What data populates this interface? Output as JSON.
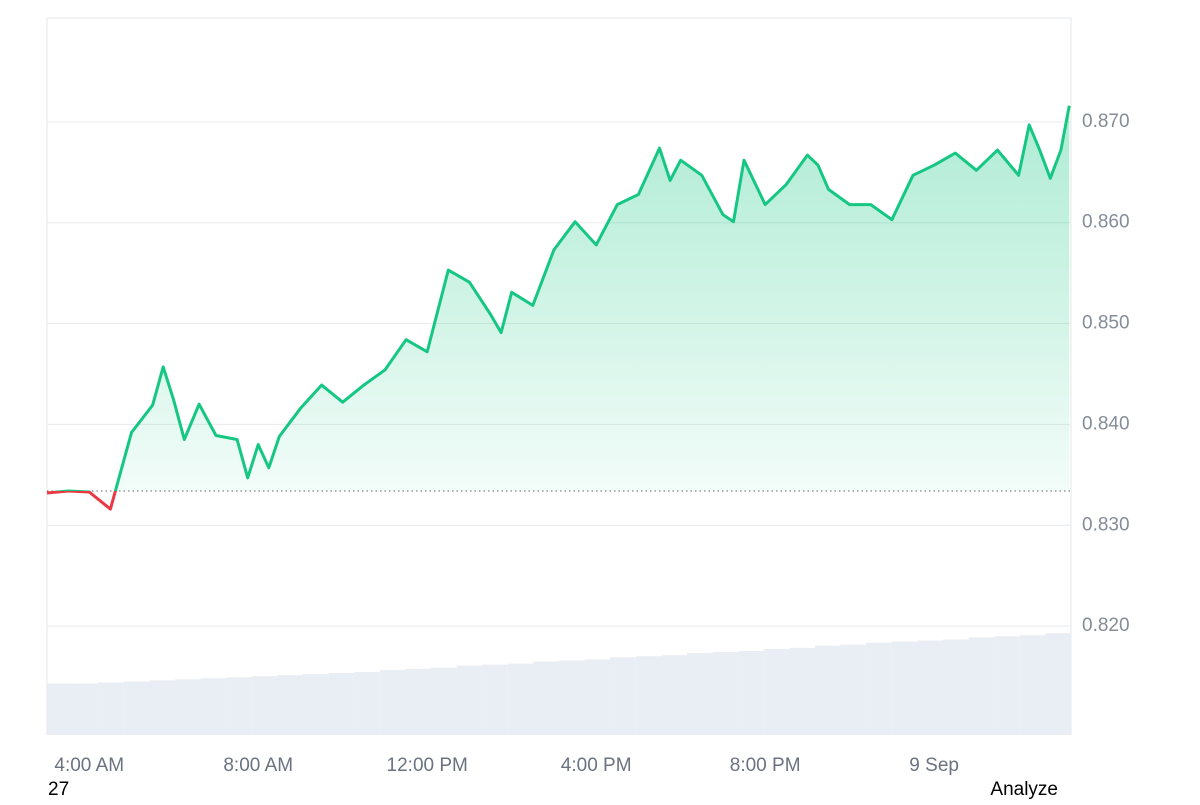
{
  "chart_data": {
    "type": "line",
    "x": [
      3.0,
      3.5,
      4.0,
      4.5,
      5.0,
      5.5,
      5.75,
      6.0,
      6.25,
      6.6,
      7.0,
      7.5,
      7.75,
      8.0,
      8.25,
      8.5,
      9.0,
      9.5,
      10.0,
      10.5,
      11.0,
      11.5,
      12.0,
      12.5,
      13.0,
      13.5,
      13.75,
      14.0,
      14.5,
      15.0,
      15.5,
      16.0,
      16.5,
      17.0,
      17.5,
      17.75,
      18.0,
      18.5,
      19.0,
      19.25,
      19.5,
      20.0,
      20.5,
      21.0,
      21.25,
      21.5,
      22.0,
      22.5,
      23.0,
      23.5,
      24.0,
      24.5,
      25.0,
      25.5,
      26.0,
      26.25,
      26.5,
      26.75,
      27.0,
      27.2
    ],
    "series": [
      {
        "color": "#16c784",
        "down_color": "#ea3943",
        "values": [
          0.8332,
          0.8334,
          0.8333,
          0.8316,
          0.8392,
          0.8419,
          0.8457,
          0.8424,
          0.8385,
          0.842,
          0.8389,
          0.8385,
          0.8347,
          0.838,
          0.8357,
          0.8388,
          0.8416,
          0.8439,
          0.8422,
          0.8439,
          0.8454,
          0.8484,
          0.8472,
          0.8553,
          0.8541,
          0.8509,
          0.8491,
          0.8531,
          0.8518,
          0.8573,
          0.8601,
          0.8578,
          0.8618,
          0.8628,
          0.8674,
          0.8642,
          0.8662,
          0.8647,
          0.8608,
          0.8601,
          0.8662,
          0.8618,
          0.8638,
          0.8667,
          0.8657,
          0.8633,
          0.8618,
          0.8618,
          0.8603,
          0.8647,
          0.8657,
          0.8669,
          0.8652,
          0.8672,
          0.8647,
          0.8697,
          0.8672,
          0.8644,
          0.8672,
          0.8716
        ]
      }
    ],
    "baseline": 0.8334,
    "xlim": [
      3.0,
      27.24
    ],
    "xticks": [
      {
        "value": 4,
        "label": "4:00 AM"
      },
      {
        "value": 8,
        "label": "8:00 AM"
      },
      {
        "value": 12,
        "label": "12:00 PM"
      },
      {
        "value": 16,
        "label": "4:00 PM"
      },
      {
        "value": 20,
        "label": "8:00 PM"
      },
      {
        "value": 24,
        "label": "9 Sep"
      }
    ],
    "ylim": [
      0.8092,
      0.8803
    ],
    "yticks": [
      {
        "value": 0.82,
        "label": "0.820"
      },
      {
        "value": 0.83,
        "label": "0.830"
      },
      {
        "value": 0.84,
        "label": "0.840"
      },
      {
        "value": 0.85,
        "label": "0.850"
      },
      {
        "value": 0.86,
        "label": "0.860"
      },
      {
        "value": 0.87,
        "label": "0.870"
      }
    ],
    "grid": true,
    "volume": {
      "color": "#e9edf4",
      "ylim": [
        0,
        100
      ],
      "values": [
        49,
        49,
        50,
        51,
        52,
        53,
        54,
        55,
        56,
        57,
        58,
        59,
        60,
        62,
        63,
        64,
        66,
        67,
        68,
        70,
        71,
        72,
        74,
        75,
        76,
        78,
        79,
        80,
        82,
        83,
        85,
        86,
        88,
        89,
        90,
        91,
        93,
        94,
        95,
        97
      ]
    },
    "annotations": [
      "27",
      "Analyze"
    ]
  }
}
